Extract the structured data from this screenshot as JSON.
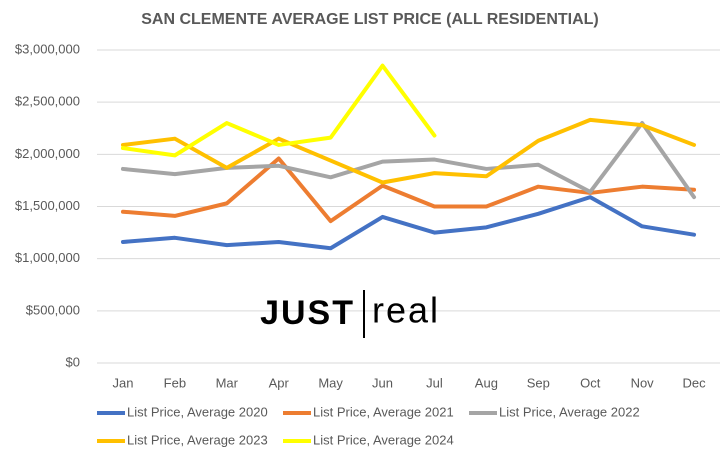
{
  "chart_data": {
    "type": "line",
    "title": "SAN CLEMENTE AVERAGE LIST PRICE (ALL RESIDENTIAL)",
    "categories": [
      "Jan",
      "Feb",
      "Mar",
      "Apr",
      "May",
      "Jun",
      "Jul",
      "Aug",
      "Sep",
      "Oct",
      "Nov",
      "Dec"
    ],
    "series": [
      {
        "name": "List Price, Average 2020",
        "color": "#4472c4",
        "values": [
          1160000,
          1200000,
          1130000,
          1160000,
          1100000,
          1400000,
          1250000,
          1300000,
          1430000,
          1590000,
          1310000,
          1230000
        ]
      },
      {
        "name": "List Price, Average 2021",
        "color": "#ed7d31",
        "values": [
          1450000,
          1410000,
          1530000,
          1960000,
          1360000,
          1700000,
          1500000,
          1500000,
          1690000,
          1630000,
          1690000,
          1660000
        ]
      },
      {
        "name": "List Price, Average 2022",
        "color": "#a5a5a5",
        "values": [
          1860000,
          1810000,
          1870000,
          1890000,
          1780000,
          1930000,
          1950000,
          1860000,
          1900000,
          1640000,
          2300000,
          1590000
        ]
      },
      {
        "name": "List Price, Average 2023",
        "color": "#ffc000",
        "values": [
          2090000,
          2150000,
          1870000,
          2150000,
          1940000,
          1730000,
          1820000,
          1790000,
          2130000,
          2330000,
          2280000,
          2090000
        ]
      },
      {
        "name": "List Price, Average 2024",
        "color": "#ffff00",
        "values": [
          2060000,
          1990000,
          2300000,
          2090000,
          2160000,
          2850000,
          2180000,
          null,
          null,
          null,
          null,
          null
        ]
      }
    ],
    "ylim": [
      0,
      3000000
    ],
    "yticks": [
      {
        "value": 0,
        "label": "$0"
      },
      {
        "value": 500000,
        "label": "$500,000"
      },
      {
        "value": 1000000,
        "label": "$1,000,000"
      },
      {
        "value": 1500000,
        "label": "$1,500,000"
      },
      {
        "value": 2000000,
        "label": "$2,000,000"
      },
      {
        "value": 2500000,
        "label": "$2,500,000"
      },
      {
        "value": 3000000,
        "label": "$3,000,000"
      }
    ],
    "grid": true,
    "legend": "bottom",
    "logo": {
      "left": "JUST",
      "right": "real"
    }
  }
}
